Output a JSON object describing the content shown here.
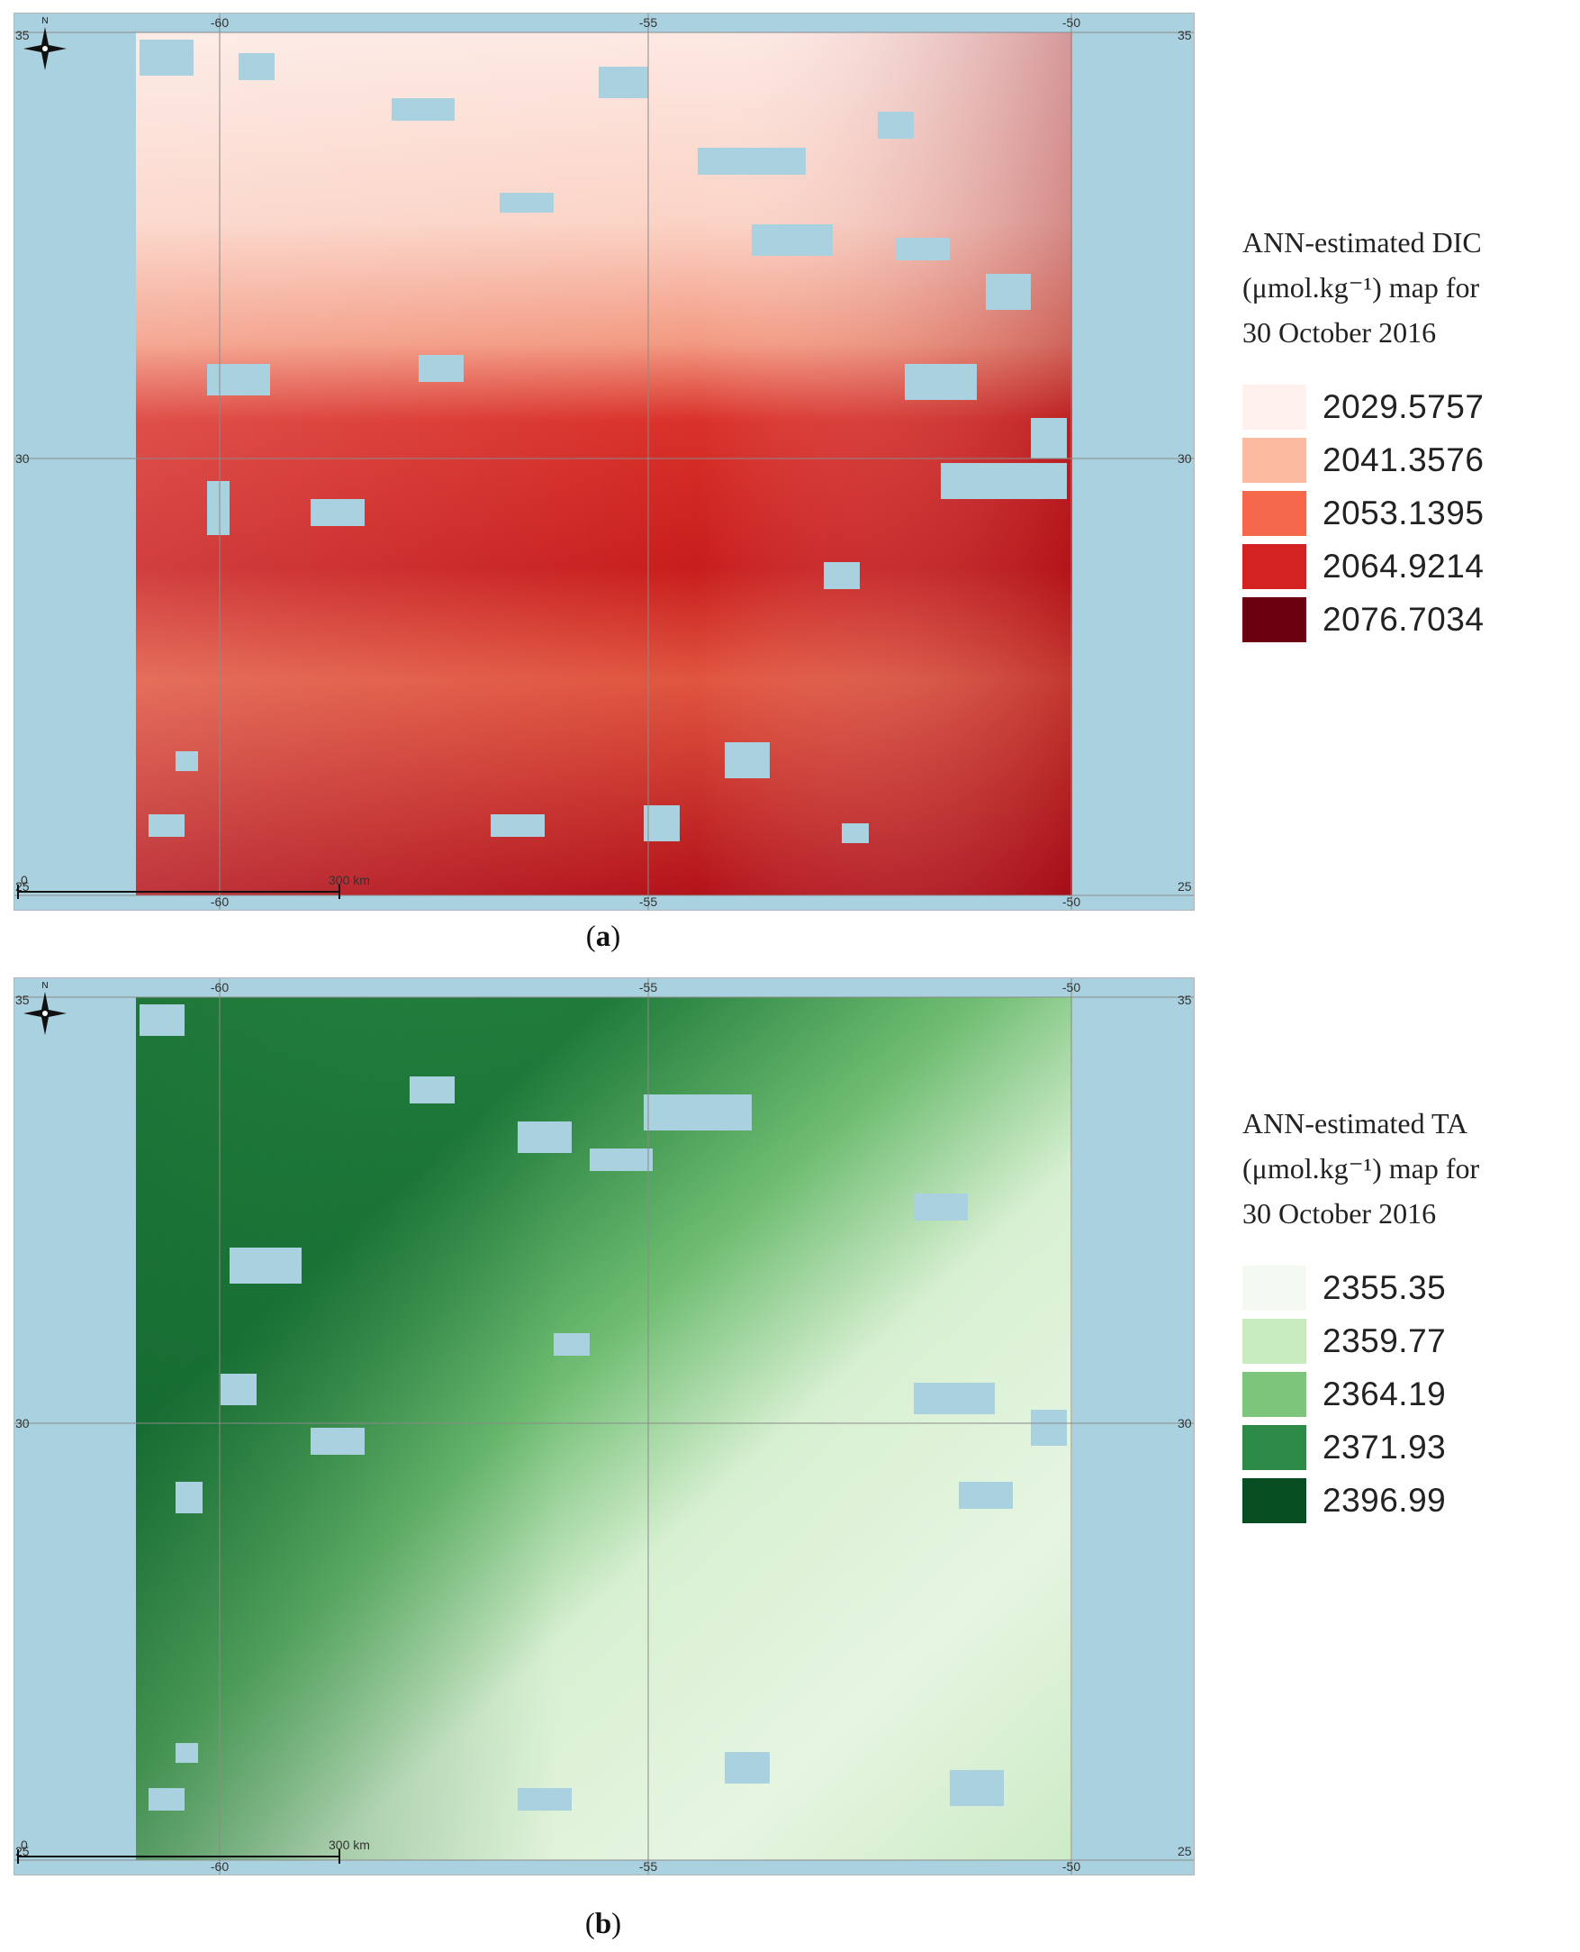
{
  "panels": [
    {
      "id": "a",
      "caption_letter": "a",
      "legend_title_lines": [
        "ANN-estimated DIC",
        "(μmol.kg⁻¹) map for",
        "30 October 2016"
      ],
      "legend": [
        {
          "value": "2029.5757",
          "color": "#fff2ee"
        },
        {
          "value": "2041.3576",
          "color": "#fcbba1"
        },
        {
          "value": "2053.1395",
          "color": "#f6684c"
        },
        {
          "value": "2064.9214",
          "color": "#d42222"
        },
        {
          "value": "2076.7034",
          "color": "#6b0010"
        }
      ],
      "axis": {
        "top_ticks": [
          "-60",
          "-55",
          "-50"
        ],
        "bottom_ticks": [
          "-60",
          "-55",
          "-50"
        ],
        "left_ticks": [
          "35",
          "30",
          "25"
        ],
        "right_ticks": [
          "35",
          "30",
          "25"
        ]
      },
      "scalebar": {
        "label": "300 km",
        "zero": "0"
      },
      "north_label": "N"
    },
    {
      "id": "b",
      "caption_letter": "b",
      "legend_title_lines": [
        "ANN-estimated TA",
        "(μmol.kg⁻¹) map for",
        "30 October 2016"
      ],
      "legend": [
        {
          "value": "2355.35",
          "color": "#f4faf1"
        },
        {
          "value": "2359.77",
          "color": "#c8ebc0"
        },
        {
          "value": "2364.19",
          "color": "#7cc57a"
        },
        {
          "value": "2371.93",
          "color": "#2e8b47"
        },
        {
          "value": "2396.99",
          "color": "#064d22"
        }
      ],
      "axis": {
        "top_ticks": [
          "-60",
          "-55",
          "-50"
        ],
        "bottom_ticks": [
          "-60",
          "-55",
          "-50"
        ],
        "left_ticks": [
          "35",
          "30",
          "25"
        ],
        "right_ticks": [
          "35",
          "30",
          "25"
        ]
      },
      "scalebar": {
        "label": "300 km",
        "zero": "0"
      },
      "north_label": "N"
    }
  ],
  "colors": {
    "no_data": "#a9d1df",
    "grid": "#8a8a8a"
  }
}
